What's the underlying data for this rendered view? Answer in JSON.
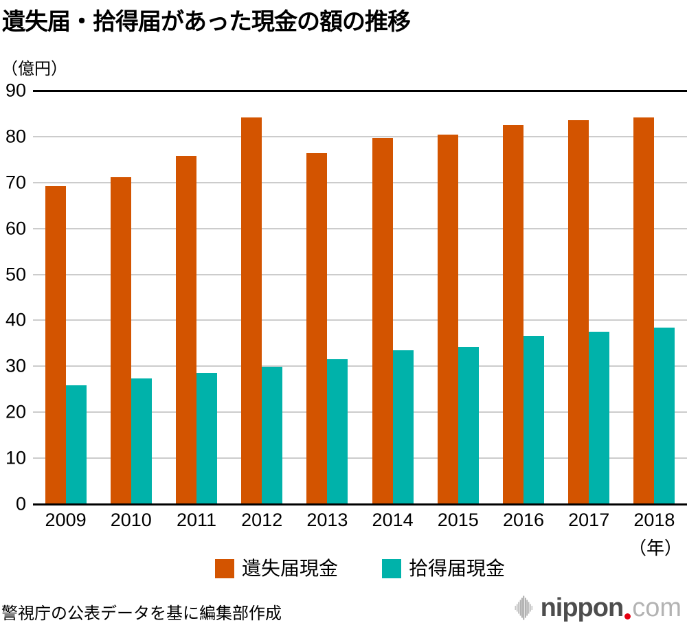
{
  "title": "遺失届・拾得届があった現金の額の推移",
  "unit_label": "（億円）",
  "xaxis_suffix": "（年）",
  "source_note": "警視庁の公表データを基に編集部作成",
  "logo": {
    "full_name": "nippon.com",
    "text_main": "nippon",
    "text_tld": "com"
  },
  "colors": {
    "lost_cash": "#d35400",
    "found_cash": "#00b2aa",
    "gridline": "#cccccc",
    "axis": "#000000",
    "logo_main": "#4d4d4d",
    "logo_tld": "#b3b3b3",
    "logo_dot": "#e60012"
  },
  "chart_data": {
    "type": "bar",
    "title": "遺失届・拾得届があった現金の額の推移",
    "ylabel": "（億円）",
    "xlabel": "（年）",
    "ylim": [
      0,
      90
    ],
    "ytick_step": 10,
    "yticks": [
      0,
      10,
      20,
      30,
      40,
      50,
      60,
      70,
      80,
      90
    ],
    "grid": true,
    "legend_position": "bottom",
    "categories": [
      "2009",
      "2010",
      "2011",
      "2012",
      "2013",
      "2014",
      "2015",
      "2016",
      "2017",
      "2018"
    ],
    "series": [
      {
        "key": "lost",
        "name": "遺失届現金",
        "color": "#d35400",
        "values": [
          69.2,
          71.2,
          75.8,
          84.2,
          76.4,
          79.7,
          80.4,
          82.6,
          83.5,
          84.2
        ]
      },
      {
        "key": "found",
        "name": "拾得届現金",
        "color": "#00b2aa",
        "values": [
          25.9,
          27.4,
          28.5,
          29.9,
          31.6,
          33.5,
          34.2,
          36.7,
          37.5,
          38.4
        ]
      }
    ]
  }
}
